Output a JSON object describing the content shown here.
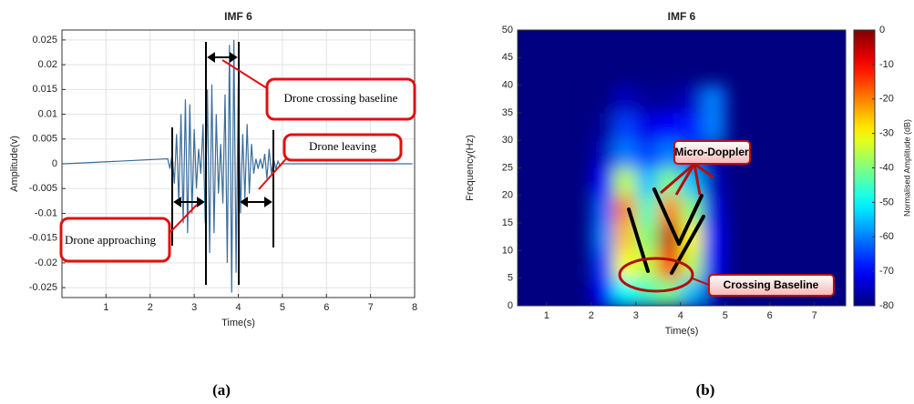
{
  "chart_data": [
    {
      "type": "line",
      "title": "IMF 6",
      "xlabel": "Time(s)",
      "ylabel": "Amplitude(v)",
      "color": "#3a6d9c",
      "x": [
        0.05,
        2.4,
        2.45,
        2.5,
        2.55,
        2.6,
        2.65,
        2.7,
        2.75,
        2.8,
        2.85,
        2.9,
        2.95,
        3.0,
        3.05,
        3.1,
        3.15,
        3.2,
        3.25,
        3.3,
        3.35,
        3.4,
        3.45,
        3.5,
        3.55,
        3.6,
        3.65,
        3.7,
        3.75,
        3.8,
        3.85,
        3.9,
        3.95,
        4.0,
        4.05,
        4.1,
        4.15,
        4.2,
        4.25,
        4.3,
        4.35,
        4.4,
        4.45,
        4.5,
        4.55,
        4.6,
        4.65,
        4.7,
        4.75,
        4.8,
        4.85,
        4.9,
        4.95,
        5.0,
        7.95
      ],
      "values": [
        0,
        0.001,
        -0.001,
        0.002,
        -0.004,
        0.006,
        -0.008,
        0.01,
        -0.012,
        0.013,
        -0.014,
        0.012,
        -0.01,
        0.007,
        -0.005,
        0.003,
        -0.002,
        0.008,
        -0.012,
        0.015,
        -0.018,
        0.016,
        -0.014,
        0.01,
        -0.006,
        0.004,
        -0.008,
        0.014,
        -0.02,
        0.024,
        -0.026,
        0.025,
        -0.022,
        0.016,
        -0.01,
        0.006,
        -0.007,
        0.008,
        -0.006,
        0.004,
        -0.002,
        0.001,
        -0.001,
        0.001,
        -0.001,
        0.002,
        -0.003,
        0.003,
        -0.002,
        0.001,
        -0.001,
        0.0005,
        -0.0005,
        0,
        0
      ],
      "xlim": [
        0,
        8
      ],
      "ylim": [
        -0.027,
        0.027
      ],
      "xticks": [
        1,
        2,
        3,
        4,
        5,
        6,
        7,
        8
      ],
      "yticks": [
        -0.025,
        -0.02,
        -0.015,
        -0.01,
        -0.005,
        0,
        0.005,
        0.01,
        0.015,
        0.02,
        0.025
      ],
      "grid": true,
      "annotations": [
        "Drone crossing baseline",
        "Drone leaving",
        "Drone approaching"
      ],
      "caption": "(a)"
    },
    {
      "type": "heatmap",
      "title": "IMF 6",
      "xlabel": "Time(s)",
      "ylabel": "Frequency(Hz)",
      "x": [
        2.25,
        2.75,
        3.25,
        3.75,
        4.25,
        4.75
      ],
      "y": [
        2.5,
        7.5,
        12.5,
        17.5,
        22.5,
        27.5,
        32.5,
        37.5
      ],
      "z": [
        [
          -70,
          -50,
          -45,
          -40,
          -55,
          -75
        ],
        [
          -65,
          -30,
          -35,
          -10,
          -35,
          -70
        ],
        [
          -60,
          -25,
          -40,
          -5,
          -30,
          -70
        ],
        [
          -62,
          -20,
          -45,
          -20,
          -40,
          -72
        ],
        [
          -70,
          -35,
          -55,
          -40,
          -55,
          -75
        ],
        [
          -75,
          -60,
          -65,
          -60,
          -65,
          -78
        ],
        [
          -78,
          -65,
          -72,
          -70,
          -68,
          -60
        ],
        [
          -80,
          -75,
          -78,
          -78,
          -75,
          -60
        ]
      ],
      "xlim": [
        0.35,
        7.7
      ],
      "ylim": [
        0,
        50
      ],
      "xticks": [
        1,
        2,
        3,
        4,
        5,
        6,
        7
      ],
      "yticks": [
        0,
        5,
        10,
        15,
        20,
        25,
        30,
        35,
        40,
        45,
        50
      ],
      "colormap": "jet",
      "colorbar": {
        "label": "Normalised Amplitude (dB)",
        "lim": [
          -80,
          0
        ],
        "ticks": [
          0,
          -10,
          -20,
          -30,
          -40,
          -50,
          -60,
          -70,
          -80
        ]
      },
      "annotations": [
        "Micro-Doppler",
        "Crossing Baseline"
      ],
      "caption": "(b)"
    }
  ]
}
